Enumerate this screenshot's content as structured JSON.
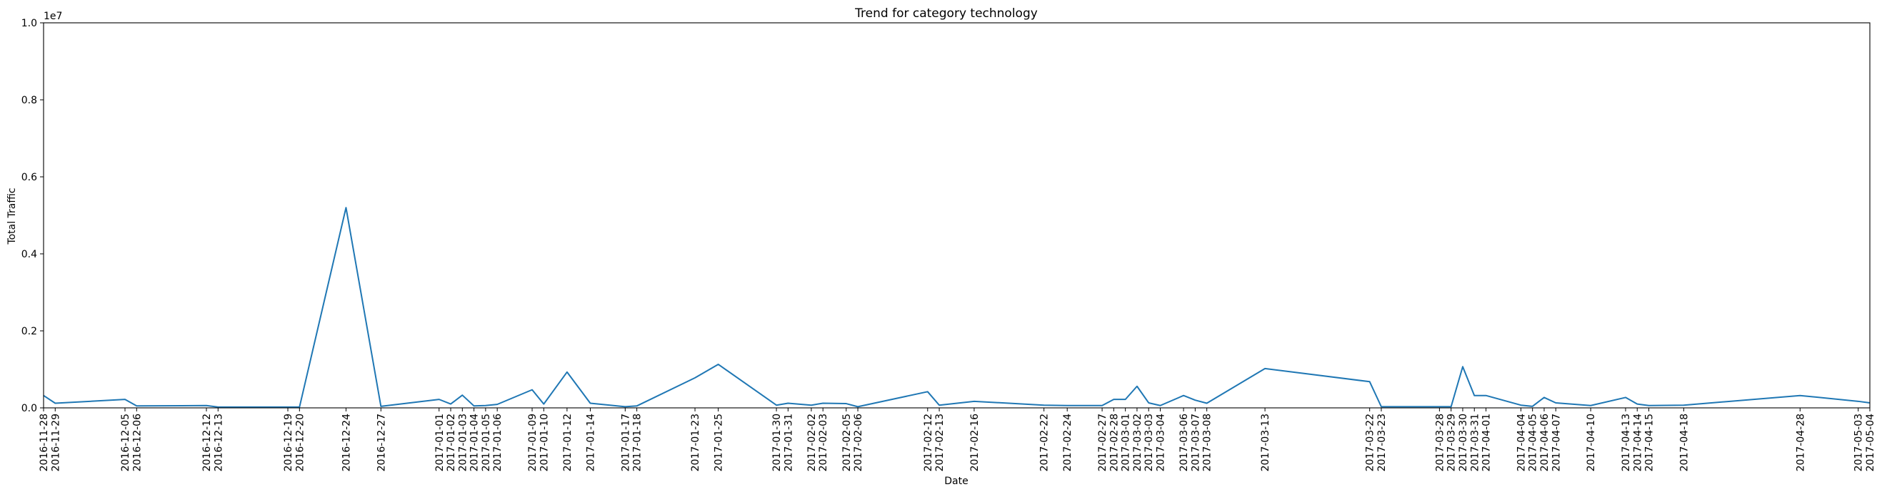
{
  "chart_data": {
    "type": "line",
    "title": "Trend for category technology",
    "xlabel": "Date",
    "ylabel": "Total Traffic",
    "y_scale_label": "1e7",
    "ylim": [
      0,
      10000000
    ],
    "y_ticks": [
      0,
      2000000,
      4000000,
      6000000,
      8000000,
      10000000
    ],
    "y_tick_labels": [
      "0.0",
      "0.2",
      "0.4",
      "0.6",
      "0.8",
      "1.0"
    ],
    "xlim": [
      "2016-11-28",
      "2017-05-04"
    ],
    "grid": false,
    "line_color": "#1f77b4",
    "x_tick_labels": [
      "2016-11-28",
      "2016-11-29",
      "2016-12-05",
      "2016-12-06",
      "2016-12-12",
      "2016-12-13",
      "2016-12-19",
      "2016-12-20",
      "2016-12-24",
      "2016-12-27",
      "2017-01-01",
      "2017-01-02",
      "2017-01-03",
      "2017-01-04",
      "2017-01-05",
      "2017-01-06",
      "2017-01-09",
      "2017-01-10",
      "2017-01-12",
      "2017-01-14",
      "2017-01-17",
      "2017-01-18",
      "2017-01-23",
      "2017-01-25",
      "2017-01-30",
      "2017-01-31",
      "2017-02-02",
      "2017-02-03",
      "2017-02-05",
      "2017-02-06",
      "2017-02-12",
      "2017-02-13",
      "2017-02-16",
      "2017-02-22",
      "2017-02-24",
      "2017-02-27",
      "2017-02-28",
      "2017-03-01",
      "2017-03-02",
      "2017-03-03",
      "2017-03-04",
      "2017-03-06",
      "2017-03-07",
      "2017-03-08",
      "2017-03-13",
      "2017-03-22",
      "2017-03-23",
      "2017-03-28",
      "2017-03-29",
      "2017-03-30",
      "2017-03-31",
      "2017-04-01",
      "2017-04-04",
      "2017-04-05",
      "2017-04-06",
      "2017-04-07",
      "2017-04-10",
      "2017-04-13",
      "2017-04-14",
      "2017-04-15",
      "2017-04-18",
      "2017-04-28",
      "2017-05-03",
      "2017-05-04"
    ],
    "series": [
      {
        "x": [
          "2016-11-28",
          "2016-11-29",
          "2016-12-05",
          "2016-12-06",
          "2016-12-12",
          "2016-12-13",
          "2016-12-19",
          "2016-12-20",
          "2016-12-24",
          "2016-12-27",
          "2017-01-01",
          "2017-01-02",
          "2017-01-03",
          "2017-01-04",
          "2017-01-05",
          "2017-01-06",
          "2017-01-09",
          "2017-01-10",
          "2017-01-12",
          "2017-01-14",
          "2017-01-17",
          "2017-01-18",
          "2017-01-23",
          "2017-01-25",
          "2017-01-30",
          "2017-01-31",
          "2017-02-02",
          "2017-02-03",
          "2017-02-05",
          "2017-02-06",
          "2017-02-12",
          "2017-02-13",
          "2017-02-16",
          "2017-02-22",
          "2017-02-24",
          "2017-02-27",
          "2017-02-28",
          "2017-03-01",
          "2017-03-02",
          "2017-03-03",
          "2017-03-04",
          "2017-03-06",
          "2017-03-07",
          "2017-03-08",
          "2017-03-13",
          "2017-03-22",
          "2017-03-23",
          "2017-03-28",
          "2017-03-29",
          "2017-03-30",
          "2017-03-31",
          "2017-04-01",
          "2017-04-04",
          "2017-04-05",
          "2017-04-06",
          "2017-04-07",
          "2017-04-10",
          "2017-04-13",
          "2017-04-14",
          "2017-04-15",
          "2017-04-18",
          "2017-04-28",
          "2017-05-03",
          "2017-05-04"
        ],
        "values": [
          320000,
          120000,
          220000,
          50000,
          60000,
          20000,
          20000,
          20000,
          5200000,
          40000,
          220000,
          100000,
          330000,
          50000,
          60000,
          90000,
          470000,
          100000,
          930000,
          120000,
          30000,
          50000,
          780000,
          1130000,
          70000,
          120000,
          70000,
          120000,
          110000,
          30000,
          420000,
          70000,
          170000,
          70000,
          60000,
          60000,
          220000,
          220000,
          560000,
          130000,
          60000,
          320000,
          200000,
          120000,
          1020000,
          680000,
          30000,
          30000,
          30000,
          1070000,
          320000,
          320000,
          70000,
          40000,
          270000,
          130000,
          60000,
          270000,
          100000,
          60000,
          70000,
          320000,
          170000,
          130000
        ]
      }
    ]
  }
}
